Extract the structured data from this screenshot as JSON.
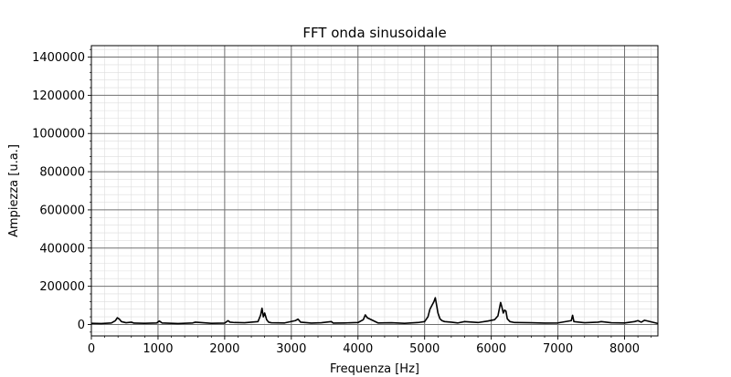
{
  "chart_data": {
    "type": "line",
    "title": "FFT onda sinusoidale",
    "xlabel": "Frequenza [Hz]",
    "ylabel": "Ampiezza [u.a.]",
    "xlim": [
      0,
      8500
    ],
    "ylim": [
      -60000,
      1460000
    ],
    "xticks": [
      0,
      1000,
      2000,
      3000,
      4000,
      5000,
      6000,
      7000,
      8000
    ],
    "yticks": [
      0,
      200000,
      400000,
      600000,
      800000,
      1000000,
      1200000,
      1400000
    ],
    "xtick_labels": [
      "0",
      "1000",
      "2000",
      "3000",
      "4000",
      "5000",
      "6000",
      "7000",
      "8000"
    ],
    "ytick_labels": [
      "0",
      "200000",
      "400000",
      "600000",
      "800000",
      "1000000",
      "1200000",
      "1400000"
    ],
    "grid": {
      "major": true,
      "minor": true
    },
    "line_color": "#000000",
    "series": [
      {
        "x": [
          0,
          150,
          300,
          360,
          390,
          420,
          450,
          520,
          600,
          640,
          800,
          980,
          1020,
          1060,
          1300,
          1520,
          1560,
          1800,
          2000,
          2050,
          2080,
          2150,
          2300,
          2400,
          2500,
          2540,
          2560,
          2580,
          2600,
          2630,
          2660,
          2700,
          2900,
          3060,
          3100,
          3140,
          3300,
          3450,
          3600,
          3630,
          3800,
          4000,
          4080,
          4110,
          4140,
          4300,
          4500,
          4700,
          4900,
          5000,
          5050,
          5080,
          5110,
          5140,
          5160,
          5180,
          5200,
          5230,
          5260,
          5300,
          5400,
          5500,
          5600,
          5800,
          5950,
          6050,
          6100,
          6140,
          6160,
          6180,
          6200,
          6220,
          6240,
          6280,
          6350,
          6600,
          6800,
          7000,
          7200,
          7220,
          7240,
          7400,
          7600,
          7650,
          7800,
          8000,
          8150,
          8200,
          8250,
          8300,
          8500
        ],
        "y": [
          6000,
          5000,
          8000,
          20000,
          35000,
          28000,
          15000,
          9000,
          12000,
          7000,
          6000,
          8000,
          18000,
          8000,
          5000,
          8000,
          12000,
          6000,
          7000,
          20000,
          12000,
          10000,
          9000,
          12000,
          15000,
          50000,
          85000,
          40000,
          60000,
          25000,
          12000,
          9000,
          8000,
          20000,
          28000,
          12000,
          7000,
          9000,
          15000,
          7000,
          8000,
          10000,
          25000,
          50000,
          35000,
          8000,
          9000,
          6000,
          10000,
          15000,
          40000,
          80000,
          100000,
          120000,
          140000,
          100000,
          60000,
          30000,
          20000,
          15000,
          12000,
          8000,
          15000,
          10000,
          18000,
          25000,
          45000,
          115000,
          90000,
          60000,
          75000,
          70000,
          30000,
          15000,
          10000,
          9000,
          7000,
          8000,
          20000,
          48000,
          15000,
          9000,
          12000,
          15000,
          9000,
          8000,
          15000,
          20000,
          12000,
          22000,
          5000
        ]
      }
    ]
  }
}
